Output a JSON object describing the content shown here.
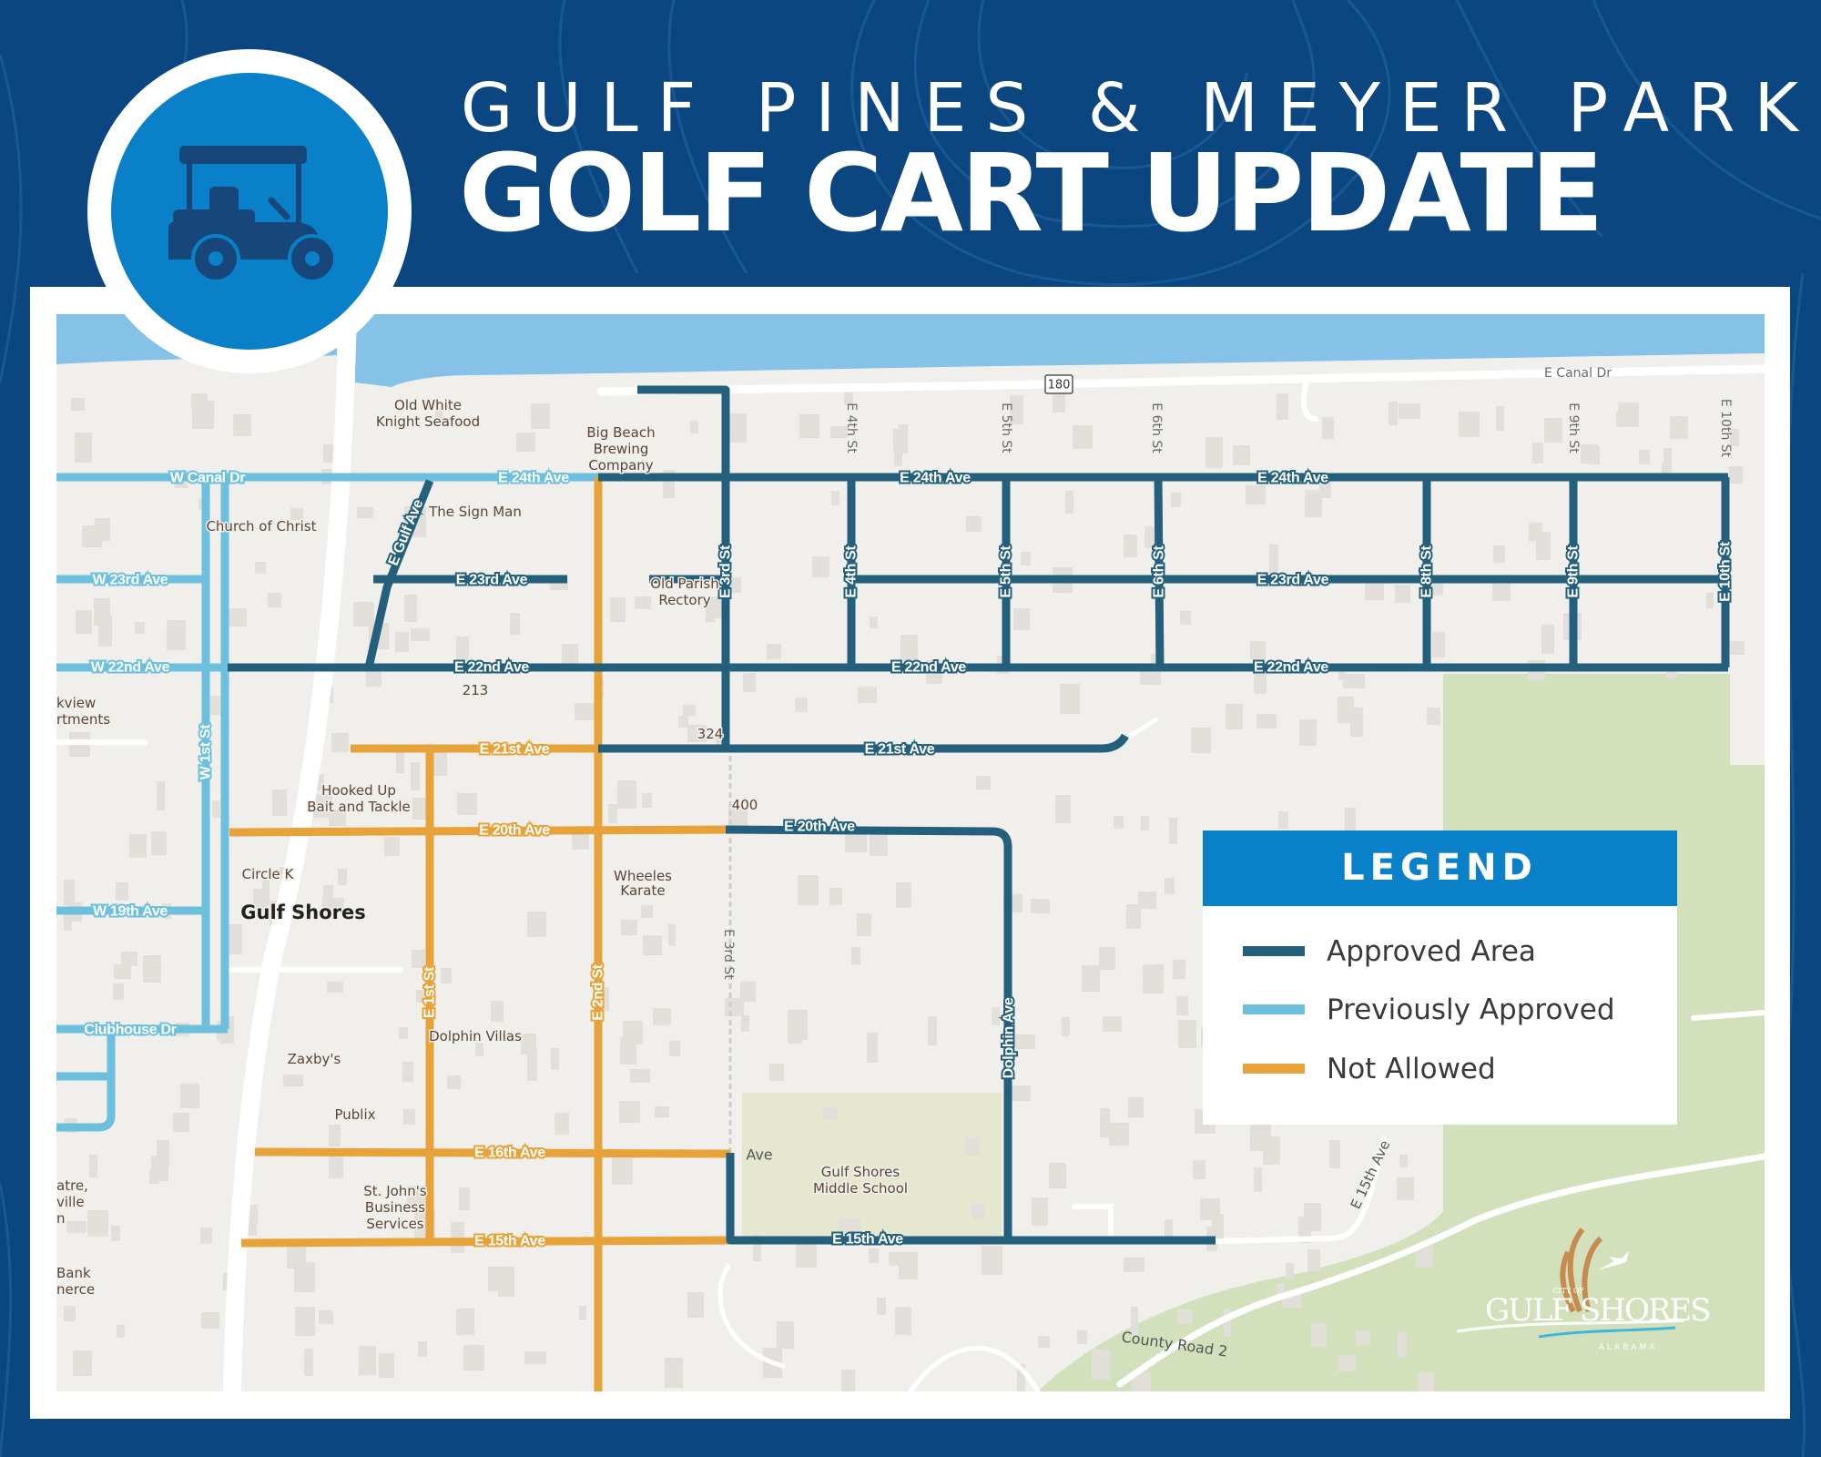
{
  "header": {
    "subtitle": "GULF PINES & MEYER PARK",
    "title": "GOLF CART UPDATE",
    "icon": "golf-cart-icon"
  },
  "colors": {
    "background": "#0b4680",
    "icon_circle": "#0a80c8",
    "approved": "#24607c",
    "previously_approved": "#6cc0dd",
    "not_allowed": "#e8a23a",
    "water": "#86c1e8",
    "park": "#d2e1bb"
  },
  "legend": {
    "title": "LEGEND",
    "items": [
      {
        "label": "Approved Area",
        "color": "#24607c"
      },
      {
        "label": "Previously Approved",
        "color": "#6cc0dd"
      },
      {
        "label": "Not Allowed",
        "color": "#e8a23a"
      }
    ]
  },
  "map": {
    "road_labels": [
      "W Canal Dr",
      "E 24th Ave",
      "E 24th Ave",
      "E 24th Ave",
      "W 23rd Ave",
      "E 23rd Ave",
      "E 23rd Ave",
      "W 22nd Ave",
      "E 22nd Ave",
      "E 22nd Ave",
      "E 22nd Ave",
      "E 21st Ave",
      "E 21st Ave",
      "E 20th Ave",
      "E 20th Ave",
      "W 19th Ave",
      "Clubhouse Dr",
      "E 16th Ave",
      "E 15th Ave",
      "E 15th Ave",
      "E Gulf Ave",
      "W 1st St",
      "E 3rd St",
      "E 4th St",
      "E 5th St",
      "E 6th St",
      "E 8th St",
      "E 9th St",
      "E 10th St",
      "E 1st St",
      "E 2nd St",
      "Dolphin Ave"
    ],
    "street_names": [
      "E Canal Dr",
      "180",
      "E 4th St",
      "E 5th St",
      "E 6th St",
      "E 9th St",
      "E 10th St",
      "E 3rd St",
      "County Road 2",
      "E 15th Ave",
      "Ave"
    ],
    "places": [
      [
        "Old White",
        "Knight Seafood"
      ],
      [
        "Big Beach",
        "Brewing",
        "Company"
      ],
      [
        "The Sign Man"
      ],
      [
        "Church of Christ"
      ],
      [
        "Old Parish",
        "Rectory"
      ],
      [
        "213"
      ],
      [
        "324"
      ],
      [
        "400"
      ],
      [
        "kview",
        "rtments"
      ],
      [
        "Hooked Up",
        "Bait and Tackle"
      ],
      [
        "Circle K"
      ],
      [
        "Gulf Shores"
      ],
      [
        "Wheeles",
        "Karate"
      ],
      [
        "Dolphin Villas"
      ],
      [
        "Zaxby's"
      ],
      [
        "Publix"
      ],
      [
        "St. John's",
        "Business",
        "Services"
      ],
      [
        "atre,",
        "ville",
        "n"
      ],
      [
        "Bank",
        "nerce"
      ],
      [
        "Gulf Shores",
        "Middle School"
      ]
    ],
    "logo": {
      "small": "CITY OF",
      "left": "GULF",
      "right": "SHORES",
      "state": "ALABAMA"
    }
  }
}
